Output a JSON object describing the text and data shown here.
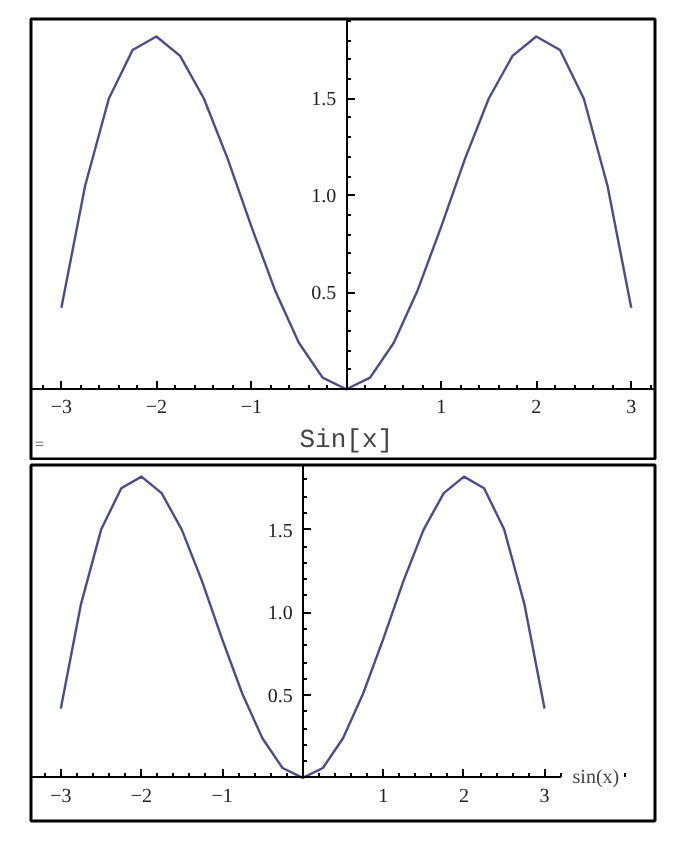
{
  "chart_data": [
    {
      "type": "line",
      "xlabel": "Sin[x]",
      "annotations": [
        "="
      ],
      "x": [
        -3,
        -2.75,
        -2.5,
        -2.25,
        -2,
        -1.75,
        -1.5,
        -1.25,
        -1,
        -0.75,
        -0.5,
        -0.25,
        0,
        0.25,
        0.5,
        0.75,
        1,
        1.25,
        1.5,
        1.75,
        2,
        2.25,
        2.5,
        2.75,
        3
      ],
      "series": [
        {
          "color": "#4b4b8c",
          "values": [
            0.42,
            1.05,
            1.5,
            1.75,
            1.82,
            1.72,
            1.5,
            1.19,
            0.84,
            0.51,
            0.24,
            0.06,
            0,
            0.06,
            0.24,
            0.51,
            0.84,
            1.19,
            1.5,
            1.72,
            1.82,
            1.75,
            1.5,
            1.05,
            0.42
          ]
        }
      ],
      "xlim": [
        -3.32,
        3.25
      ],
      "ylim": [
        -0.37,
        1.91
      ],
      "xticks": [
        {
          "value": -3,
          "label": "−3"
        },
        {
          "value": -2,
          "label": "−2"
        },
        {
          "value": -1,
          "label": "−1"
        },
        {
          "value": 1,
          "label": "1"
        },
        {
          "value": 2,
          "label": "2"
        },
        {
          "value": 3,
          "label": "3"
        }
      ],
      "yticks": [
        {
          "value": 0.5,
          "label": "0.5"
        },
        {
          "value": 1,
          "label": "1.0"
        },
        {
          "value": 1.5,
          "label": "1.5"
        }
      ],
      "grid": false
    },
    {
      "type": "line",
      "xlabel": "sin(x)",
      "x": [
        -3,
        -2.75,
        -2.5,
        -2.25,
        -2,
        -1.75,
        -1.5,
        -1.25,
        -1,
        -0.75,
        -0.5,
        -0.25,
        0,
        0.25,
        0.5,
        0.75,
        1,
        1.25,
        1.5,
        1.75,
        2,
        2.25,
        2.5,
        2.75,
        3
      ],
      "series": [
        {
          "color": "#4b4b8c",
          "values": [
            0.42,
            1.05,
            1.5,
            1.75,
            1.82,
            1.72,
            1.5,
            1.19,
            0.84,
            0.51,
            0.24,
            0.06,
            0,
            0.06,
            0.24,
            0.51,
            0.84,
            1.19,
            1.5,
            1.72,
            1.82,
            1.75,
            1.5,
            1.05,
            0.42
          ]
        }
      ],
      "xlim": [
        -3.37,
        4.37
      ],
      "ylim": [
        -0.26,
        1.89
      ],
      "xticks": [
        {
          "value": -3,
          "label": "−3"
        },
        {
          "value": -2,
          "label": "−2"
        },
        {
          "value": -1,
          "label": "−1"
        },
        {
          "value": 1,
          "label": "1"
        },
        {
          "value": 2,
          "label": "2"
        },
        {
          "value": 3,
          "label": "3"
        }
      ],
      "yticks": [
        {
          "value": 0.5,
          "label": "0.5"
        },
        {
          "value": 1,
          "label": "1.0"
        },
        {
          "value": 1.5,
          "label": "1.5"
        }
      ],
      "grid": false
    }
  ]
}
